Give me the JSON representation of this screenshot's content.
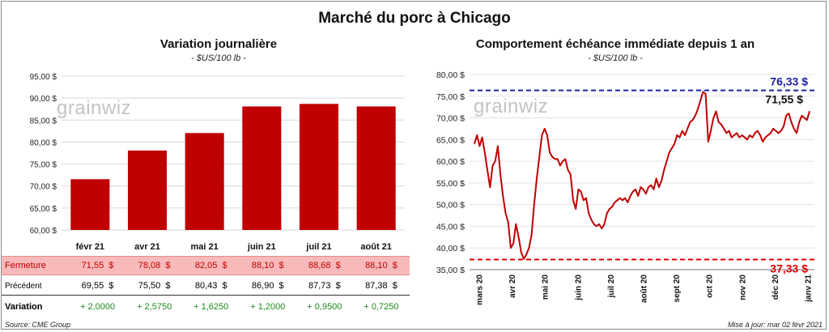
{
  "title": "Marché du porc à Chicago",
  "left": {
    "subtitle": "Variation journalière",
    "unit": "- $US/100 lb -",
    "watermark": "grainwiz",
    "table": {
      "rows": [
        {
          "label": "Fermeture",
          "values": [
            "71,55  $",
            "78,08  $",
            "82,05  $",
            "88,10  $",
            "88,68  $",
            "88,10  $"
          ]
        },
        {
          "label": "Précédent",
          "values": [
            "69,55  $",
            "75,50  $",
            "80,43  $",
            "86,90  $",
            "87,73  $",
            "87,38  $"
          ]
        },
        {
          "label": "Variation",
          "values": [
            "+ 2,0000",
            "+ 2,5750",
            "+ 1,6250",
            "+ 1,2000",
            "+ 0,9500",
            "+ 0,7250"
          ]
        }
      ]
    },
    "source": "Source: CME Group"
  },
  "right": {
    "subtitle": "Comportement  échéance immédiate depuis 1 an",
    "unit": "- $US/100 lb -",
    "watermark": "grainwiz",
    "updated": "Mise à jour: mar 02 févr 2021"
  },
  "chart_data": [
    {
      "type": "bar",
      "categories": [
        "févr 21",
        "avr 21",
        "mai 21",
        "juin 21",
        "juil 21",
        "août 21"
      ],
      "values": [
        71.55,
        78.08,
        82.05,
        88.1,
        88.68,
        88.1
      ],
      "ylim": [
        60,
        95
      ],
      "yticks": [
        "60,00 $",
        "65,00 $",
        "70,00 $",
        "75,00 $",
        "80,00 $",
        "85,00 $",
        "90,00 $",
        "95,00 $"
      ],
      "grid": true,
      "color": "#c00000"
    },
    {
      "type": "line",
      "x_labels": [
        "mars 20",
        "avr 20",
        "mai 20",
        "juin 20",
        "juil 20",
        "août 20",
        "sept 20",
        "oct 20",
        "nov 20",
        "déc 20",
        "janv 21"
      ],
      "ylim": [
        35,
        80
      ],
      "yticks": [
        "35,00 $",
        "40,00 $",
        "45,00 $",
        "50,00 $",
        "55,00 $",
        "60,00 $",
        "65,00 $",
        "70,00 $",
        "75,00 $",
        "80,00 $"
      ],
      "values": [
        64.0,
        66.0,
        63.5,
        65.5,
        62.0,
        58.0,
        54.0,
        59.0,
        60.0,
        63.5,
        57.0,
        52.0,
        48.0,
        46.0,
        40.0,
        41.0,
        45.5,
        42.5,
        39.0,
        37.5,
        38.5,
        40.0,
        43.0,
        50.0,
        56.0,
        61.0,
        66.0,
        67.5,
        66.0,
        62.0,
        61.0,
        60.5,
        60.5,
        59.0,
        60.0,
        60.5,
        58.0,
        57.0,
        51.0,
        49.0,
        53.5,
        53.0,
        51.0,
        51.5,
        48.0,
        46.5,
        45.5,
        45.0,
        45.5,
        44.5,
        45.5,
        48.0,
        49.0,
        49.5,
        50.5,
        51.0,
        51.5,
        51.0,
        51.5,
        50.5,
        52.0,
        53.0,
        53.5,
        52.0,
        54.0,
        53.5,
        52.5,
        54.0,
        54.5,
        53.5,
        56.0,
        54.0,
        55.5,
        58.0,
        60.0,
        62.0,
        63.0,
        64.0,
        66.0,
        65.5,
        67.0,
        66.0,
        67.5,
        69.0,
        69.5,
        70.5,
        72.0,
        74.0,
        76.0,
        75.5,
        64.5,
        67.0,
        70.0,
        71.5,
        69.0,
        68.5,
        67.5,
        66.5,
        67.0,
        65.5,
        66.0,
        66.5,
        65.5,
        66.0,
        65.5,
        65.0,
        66.0,
        65.5,
        66.5,
        67.0,
        66.0,
        64.5,
        65.5,
        66.0,
        66.5,
        67.5,
        67.0,
        66.5,
        67.0,
        68.0,
        70.5,
        71.0,
        69.0,
        67.5,
        66.5,
        69.0,
        70.5,
        70.0,
        69.5,
        71.55
      ],
      "reference_lines": [
        {
          "value": 76.33,
          "label": "76,33 $",
          "color": "#1f1fa8"
        },
        {
          "value": 37.33,
          "label": "37,33 $",
          "color": "#e00000"
        }
      ],
      "last_label": "71,55 $",
      "color": "#c00000"
    }
  ]
}
